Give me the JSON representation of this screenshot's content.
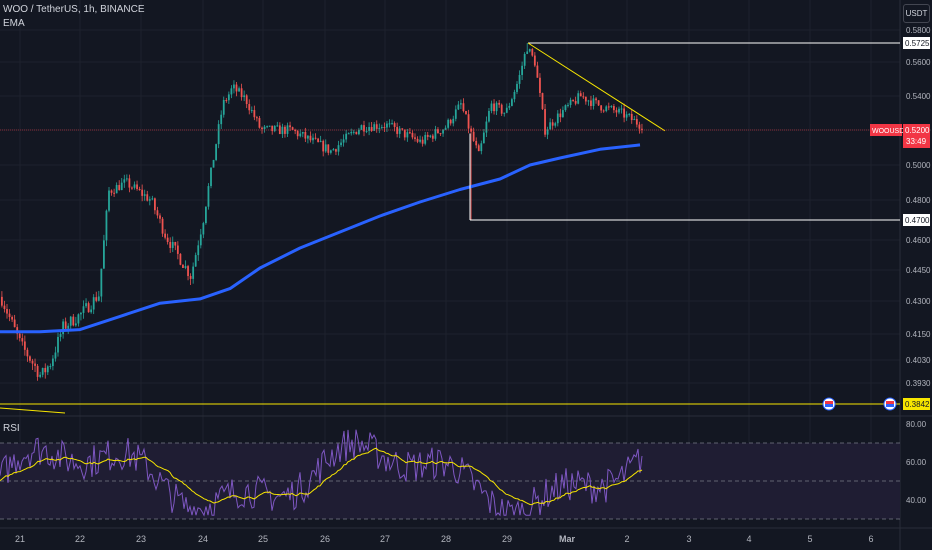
{
  "header": {
    "symbol_line": "WOO / TetherUS, 1h, BINANCE",
    "indicator": "EMA",
    "unit": "USDT"
  },
  "chart_data": [
    {
      "type": "candlestick",
      "title": "WOO / TetherUS, 1h, BINANCE",
      "x_ticks": [
        "21",
        "22",
        "23",
        "24",
        "25",
        "26",
        "27",
        "28",
        "29",
        "Mar",
        "2",
        "3",
        "4",
        "5",
        "6"
      ],
      "y_ticks": [
        "0.5800",
        "0.5600",
        "0.5400",
        "0.5200",
        "0.5000",
        "0.4800",
        "0.4600",
        "0.4450",
        "0.4300",
        "0.4150",
        "0.4030",
        "0.3930"
      ],
      "price_labels": [
        {
          "text": "0.5725",
          "value": 0.5725,
          "color": "#ffffff",
          "bg": "#ffffff",
          "fg": "#131722"
        },
        {
          "text": "0.4700",
          "value": 0.47,
          "color": "#ffffff",
          "bg": "#ffffff",
          "fg": "#131722"
        },
        {
          "text": "0.3842",
          "value": 0.3842,
          "color": "#f7e600",
          "bg": "#f7e600",
          "fg": "#131722"
        }
      ],
      "current": {
        "symbol": "WOOUSDT",
        "price": "0.5200",
        "countdown": "33:49",
        "value": 0.52,
        "color": "#f23645"
      },
      "drawings": [
        {
          "kind": "horizontal-segment",
          "value": 0.5725,
          "from": "29",
          "to_edge": true
        },
        {
          "kind": "horizontal-segment",
          "value": 0.47,
          "from": "28",
          "to_edge": true
        },
        {
          "kind": "horizontal-line",
          "value": 0.3842,
          "color": "#f7e600"
        },
        {
          "kind": "trend-line",
          "from": [
            "29",
            0.5725
          ],
          "to": [
            "2",
            0.5195
          ],
          "color": "#f7e600"
        }
      ],
      "ema": {
        "name": "EMA",
        "color": "#2962ff"
      },
      "colors": {
        "up": "#26a69a",
        "down": "#ef5350",
        "background": "#131722",
        "grid": "#1e222d"
      }
    },
    {
      "type": "line",
      "title": "RSI",
      "y_ticks": [
        "80.00",
        "60.00",
        "40.00"
      ],
      "bands": [
        70,
        50,
        30
      ],
      "colors": {
        "rsi": "#7e57c2",
        "ma": "#f7e600",
        "band_fill": "#1f1d33"
      }
    }
  ]
}
